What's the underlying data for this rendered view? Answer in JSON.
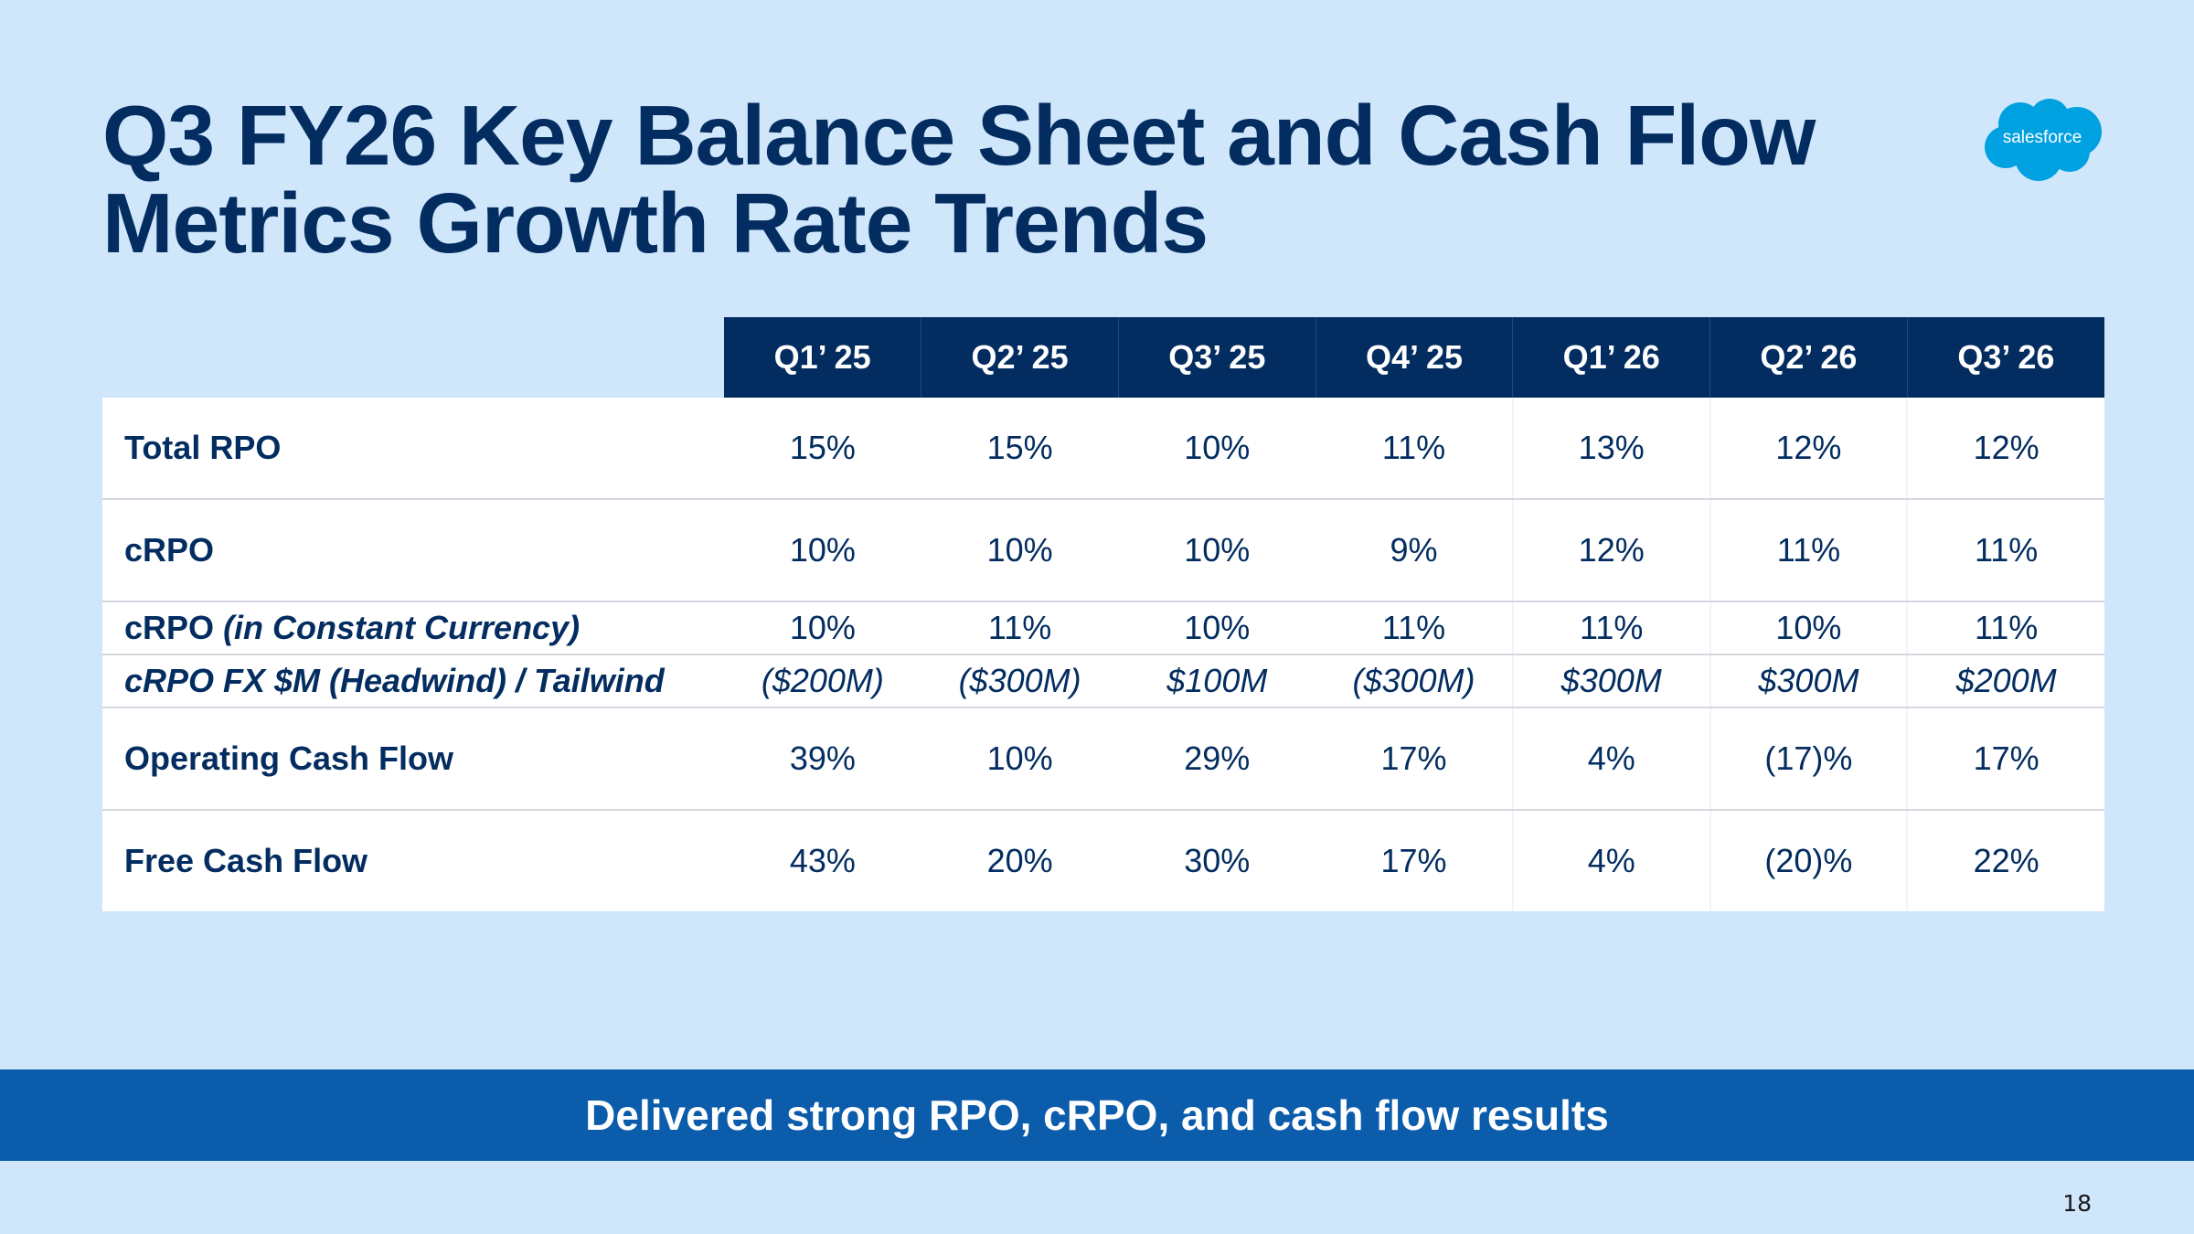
{
  "slide": {
    "title_line1": "Q3 FY26 Key Balance Sheet and Cash Flow",
    "title_line2": "Metrics Growth Rate Trends",
    "logo_text": "salesforce",
    "banner_text": "Delivered strong RPO, cRPO, and cash flow results",
    "page_number": "18"
  },
  "colors": {
    "background": "#cfe6fb",
    "navy": "#032d60",
    "banner_blue": "#0b5cab",
    "logo_blue": "#00a1e0"
  },
  "table": {
    "columns": [
      "Q1’ 25",
      "Q2’ 25",
      "Q3’ 25",
      "Q4’ 25",
      "Q1’ 26",
      "Q2’ 26",
      "Q3’ 26"
    ],
    "rows": [
      {
        "label": "Total RPO",
        "values": [
          "15%",
          "15%",
          "10%",
          "11%",
          "13%",
          "12%",
          "12%"
        ]
      },
      {
        "label": "cRPO",
        "values": [
          "10%",
          "10%",
          "10%",
          "9%",
          "12%",
          "11%",
          "11%"
        ]
      },
      {
        "label": "cRPO",
        "label_suffix": "(in Constant Currency)",
        "values": [
          "10%",
          "11%",
          "10%",
          "11%",
          "11%",
          "10%",
          "11%"
        ]
      },
      {
        "label": "cRPO FX $M (Headwind) / Tailwind",
        "values": [
          "($200M)",
          "($300M)",
          "$100M",
          "($300M)",
          "$300M",
          "$300M",
          "$200M"
        ]
      },
      {
        "label": "Operating Cash Flow",
        "values": [
          "39%",
          "10%",
          "29%",
          "17%",
          "4%",
          "(17)%",
          "17%"
        ]
      },
      {
        "label": "Free Cash Flow",
        "values": [
          "43%",
          "20%",
          "30%",
          "17%",
          "4%",
          "(20)%",
          "22%"
        ]
      }
    ]
  }
}
